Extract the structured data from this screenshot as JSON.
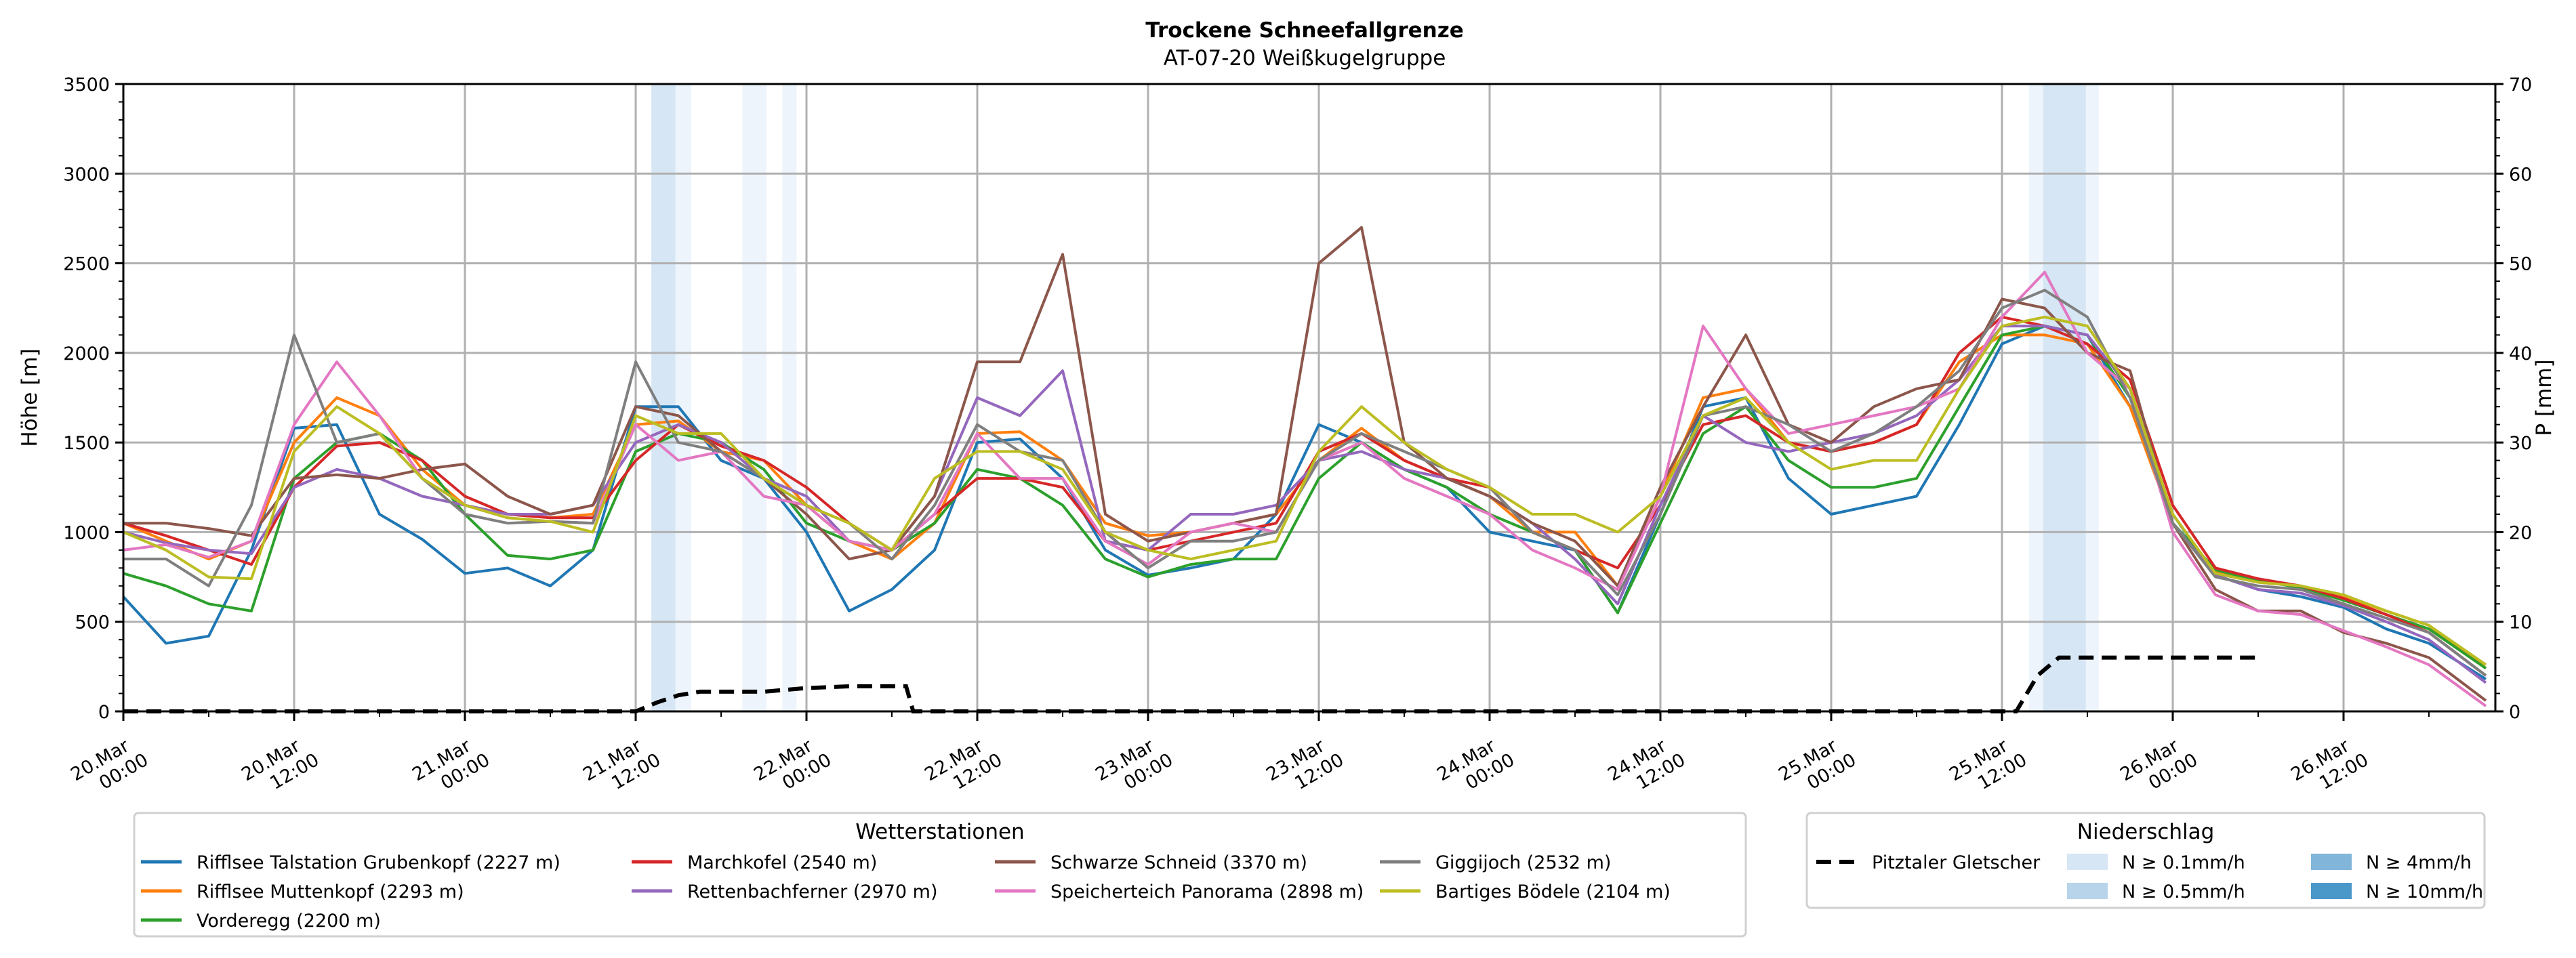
{
  "chart_data": {
    "type": "line",
    "title": "Trockene Schneefallgrenze",
    "subtitle": "AT-07-20 Weißkugelgruppe",
    "ylabel": "Höhe [m]",
    "y2label": "P [mm]",
    "ylim": [
      0,
      3500
    ],
    "y2lim": [
      0,
      70
    ],
    "yticks": [
      "0",
      "500",
      "1000",
      "1500",
      "2000",
      "2500",
      "3000",
      "3500"
    ],
    "y2ticks": [
      "0",
      "10",
      "20",
      "30",
      "40",
      "50",
      "60",
      "70"
    ],
    "x_unit": "hours since 20.Mar 00:00",
    "xlim": [
      0,
      130
    ],
    "xticks": [
      {
        "h": 0,
        "label": [
          "20.Mar",
          "00:00"
        ]
      },
      {
        "h": 12,
        "label": [
          "20.Mar",
          "12:00"
        ]
      },
      {
        "h": 24,
        "label": [
          "21.Mar",
          "00:00"
        ]
      },
      {
        "h": 36,
        "label": [
          "21.Mar",
          "12:00"
        ]
      },
      {
        "h": 48,
        "label": [
          "22.Mar",
          "00:00"
        ]
      },
      {
        "h": 60,
        "label": [
          "22.Mar",
          "12:00"
        ]
      },
      {
        "h": 72,
        "label": [
          "23.Mar",
          "00:00"
        ]
      },
      {
        "h": 84,
        "label": [
          "23.Mar",
          "12:00"
        ]
      },
      {
        "h": 96,
        "label": [
          "24.Mar",
          "00:00"
        ]
      },
      {
        "h": 108,
        "label": [
          "24.Mar",
          "12:00"
        ]
      },
      {
        "h": 120,
        "label": [
          "25.Mar",
          "00:00"
        ]
      },
      {
        "h": 132,
        "label": [
          "25.Mar",
          "12:00"
        ]
      },
      {
        "h": 144,
        "label": [
          "26.Mar",
          "00:00"
        ]
      },
      {
        "h": 156,
        "label": [
          "26.Mar",
          "12:00"
        ]
      }
    ],
    "grid": true,
    "x": [
      0,
      3,
      6,
      9,
      12,
      15,
      18,
      21,
      24,
      27,
      30,
      33,
      36,
      39,
      42,
      45,
      48,
      51,
      54,
      57,
      60,
      63,
      66,
      69,
      72,
      75,
      78,
      81,
      84,
      87,
      90,
      93,
      96,
      99,
      102,
      105,
      108,
      111,
      114,
      117,
      120,
      123,
      126,
      129,
      132,
      135,
      138,
      141,
      144,
      147,
      150,
      153,
      156,
      159,
      162,
      166
    ],
    "series": [
      {
        "name": "Rifflsee Talstation Grubenkopf (2227 m)",
        "color": "#1f77b4",
        "values": [
          640,
          380,
          420,
          900,
          1580,
          1600,
          1100,
          960,
          770,
          800,
          700,
          900,
          1700,
          1700,
          1400,
          1300,
          1000,
          560,
          680,
          900,
          1500,
          1520,
          1300,
          900,
          760,
          800,
          850,
          1100,
          1600,
          1500,
          1350,
          1250,
          1000,
          950,
          900,
          550,
          1100,
          1700,
          1750,
          1300,
          1100,
          1150,
          1200,
          1600,
          2050,
          2150,
          2100,
          1700,
          1100,
          760,
          680,
          640,
          580,
          460,
          380,
          180
        ]
      },
      {
        "name": "Rifflsee Muttenkopf (2293 m)",
        "color": "#ff7f0e",
        "values": [
          1050,
          950,
          850,
          950,
          1500,
          1750,
          1650,
          1350,
          1150,
          1100,
          1080,
          1100,
          1600,
          1620,
          1450,
          1400,
          1150,
          950,
          850,
          1050,
          1550,
          1560,
          1400,
          1050,
          980,
          1000,
          1050,
          1100,
          1400,
          1580,
          1400,
          1300,
          1200,
          1000,
          1000,
          700,
          1200,
          1750,
          1800,
          1500,
          1450,
          1500,
          1600,
          1950,
          2100,
          2100,
          2050,
          1700,
          1050,
          780,
          720,
          700,
          640,
          560,
          480,
          240
        ]
      },
      {
        "name": "Vorderegg (2200 m)",
        "color": "#2ca02c",
        "values": [
          770,
          700,
          600,
          560,
          1300,
          1500,
          1550,
          1400,
          1100,
          870,
          850,
          900,
          1450,
          1550,
          1500,
          1350,
          1050,
          950,
          900,
          1050,
          1350,
          1300,
          1150,
          850,
          750,
          820,
          850,
          850,
          1300,
          1500,
          1350,
          1250,
          1100,
          1000,
          900,
          550,
          1050,
          1550,
          1700,
          1400,
          1250,
          1250,
          1300,
          1700,
          2100,
          2150,
          2100,
          1750,
          1050,
          790,
          730,
          690,
          620,
          540,
          460,
          240
        ]
      },
      {
        "name": "Marchkofel (2540 m)",
        "color": "#d62728",
        "values": [
          1050,
          980,
          900,
          820,
          1250,
          1480,
          1500,
          1400,
          1200,
          1100,
          1080,
          1080,
          1400,
          1600,
          1480,
          1400,
          1250,
          1050,
          900,
          1100,
          1300,
          1300,
          1250,
          950,
          900,
          950,
          1000,
          1050,
          1450,
          1550,
          1400,
          1300,
          1250,
          1000,
          900,
          800,
          1150,
          1600,
          1650,
          1500,
          1450,
          1500,
          1600,
          2000,
          2200,
          2150,
          2050,
          1850,
          1150,
          800,
          740,
          700,
          630,
          540,
          440,
          200
        ]
      },
      {
        "name": "Rettenbachferner (2970 m)",
        "color": "#9467bd",
        "values": [
          1000,
          940,
          900,
          880,
          1250,
          1350,
          1300,
          1200,
          1150,
          1100,
          1100,
          1150,
          1500,
          1600,
          1500,
          1300,
          1200,
          950,
          900,
          1200,
          1750,
          1650,
          1900,
          950,
          900,
          1100,
          1100,
          1150,
          1400,
          1450,
          1350,
          1300,
          1200,
          1050,
          850,
          600,
          1150,
          1650,
          1500,
          1450,
          1500,
          1550,
          1650,
          1850,
          2150,
          2150,
          2100,
          1800,
          1050,
          760,
          680,
          660,
          590,
          500,
          400,
          160
        ]
      },
      {
        "name": "Schwarze Schneid (3370 m)",
        "color": "#8c564b",
        "values": [
          1050,
          1050,
          1020,
          980,
          1300,
          1320,
          1300,
          1350,
          1380,
          1200,
          1100,
          1150,
          1700,
          1650,
          1450,
          1300,
          1100,
          850,
          900,
          1200,
          1950,
          1950,
          2550,
          1100,
          950,
          1000,
          1050,
          1100,
          2500,
          2700,
          1500,
          1300,
          1200,
          1050,
          950,
          700,
          1250,
          1700,
          2100,
          1600,
          1500,
          1700,
          1800,
          1850,
          2300,
          2250,
          2000,
          1900,
          1050,
          680,
          560,
          560,
          440,
          380,
          300,
          60
        ]
      },
      {
        "name": "Speicherteich Panorama (2898 m)",
        "color": "#e377c2",
        "values": [
          900,
          930,
          860,
          950,
          1600,
          1950,
          1650,
          1300,
          1150,
          1080,
          1060,
          1050,
          1600,
          1400,
          1450,
          1200,
          1150,
          950,
          900,
          1100,
          1550,
          1300,
          1300,
          950,
          820,
          1000,
          1050,
          1000,
          1400,
          1500,
          1300,
          1200,
          1100,
          900,
          800,
          680,
          1200,
          2150,
          1800,
          1550,
          1600,
          1650,
          1700,
          1800,
          2200,
          2450,
          2000,
          1800,
          1000,
          650,
          560,
          540,
          450,
          360,
          260,
          30
        ]
      },
      {
        "name": "Giggijoch (2532 m)",
        "color": "#7f7f7f",
        "values": [
          850,
          850,
          700,
          1150,
          2100,
          1500,
          1550,
          1300,
          1100,
          1050,
          1060,
          1050,
          1950,
          1500,
          1450,
          1300,
          1150,
          1050,
          850,
          1150,
          1600,
          1450,
          1400,
          1000,
          800,
          950,
          950,
          1000,
          1400,
          1550,
          1450,
          1350,
          1250,
          1000,
          900,
          650,
          1100,
          1650,
          1700,
          1600,
          1450,
          1550,
          1700,
          1900,
          2250,
          2350,
          2200,
          1750,
          1050,
          750,
          700,
          680,
          600,
          520,
          440,
          200
        ]
      },
      {
        "name": "Bartiges Bödele (2104 m)",
        "color": "#bcbd22",
        "values": [
          1000,
          900,
          750,
          740,
          1450,
          1700,
          1550,
          1300,
          1150,
          1080,
          1060,
          1000,
          1650,
          1550,
          1550,
          1300,
          1150,
          1050,
          900,
          1300,
          1450,
          1450,
          1350,
          1000,
          900,
          850,
          900,
          950,
          1450,
          1700,
          1500,
          1350,
          1250,
          1100,
          1100,
          1000,
          1200,
          1650,
          1750,
          1500,
          1350,
          1400,
          1400,
          1800,
          2150,
          2200,
          2150,
          1800,
          1100,
          770,
          720,
          700,
          650,
          560,
          480,
          260
        ]
      }
    ],
    "precip_line": {
      "name": "Pitztaler Gletscher",
      "color": "#000000",
      "style": "dashed",
      "axis": "P [mm]",
      "x": [
        0,
        36,
        37.5,
        39,
        40.5,
        42,
        45,
        48,
        51,
        54,
        55,
        55.5,
        131,
        132,
        133,
        134.5,
        136,
        139,
        145,
        150
      ],
      "values": [
        0,
        0,
        1,
        1.8,
        2.2,
        2.2,
        2.2,
        2.6,
        2.8,
        2.8,
        2.8,
        0,
        0,
        0,
        0,
        4,
        6,
        6,
        6,
        6
      ]
    },
    "precip_bands": [
      {
        "start": 37.1,
        "end": 38.8,
        "class": "N ≥ 0.5mm/h"
      },
      {
        "start": 38.8,
        "end": 39.9,
        "class": "N ≥ 0.1mm/h"
      },
      {
        "start": 43.5,
        "end": 45.2,
        "class": "N ≥ 0.1mm/h"
      },
      {
        "start": 46.3,
        "end": 47.3,
        "class": "N ≥ 0.1mm/h"
      },
      {
        "start": 133.9,
        "end": 134.9,
        "class": "N ≥ 0.1mm/h"
      },
      {
        "start": 134.9,
        "end": 137.9,
        "class": "N ≥ 0.5mm/h"
      },
      {
        "start": 137.9,
        "end": 138.8,
        "class": "N ≥ 0.1mm/h"
      }
    ],
    "legends": [
      {
        "title": "Wetterstationen",
        "position": "bottom-left"
      },
      {
        "title": "Niederschlag",
        "position": "bottom-right",
        "entries": [
          {
            "label": "Pitztaler Gletscher",
            "kind": "dashed-line",
            "color": "#000000"
          },
          {
            "label": "N ≥ 0.1mm/h",
            "kind": "patch",
            "color": "#d6e6f4"
          },
          {
            "label": "N ≥ 0.5mm/h",
            "kind": "patch",
            "color": "#b7d4ea"
          },
          {
            "label": "N ≥ 4mm/h",
            "kind": "patch",
            "color": "#81b5da"
          },
          {
            "label": "N ≥ 10mm/h",
            "kind": "patch",
            "color": "#4a97c9"
          }
        ]
      }
    ]
  }
}
